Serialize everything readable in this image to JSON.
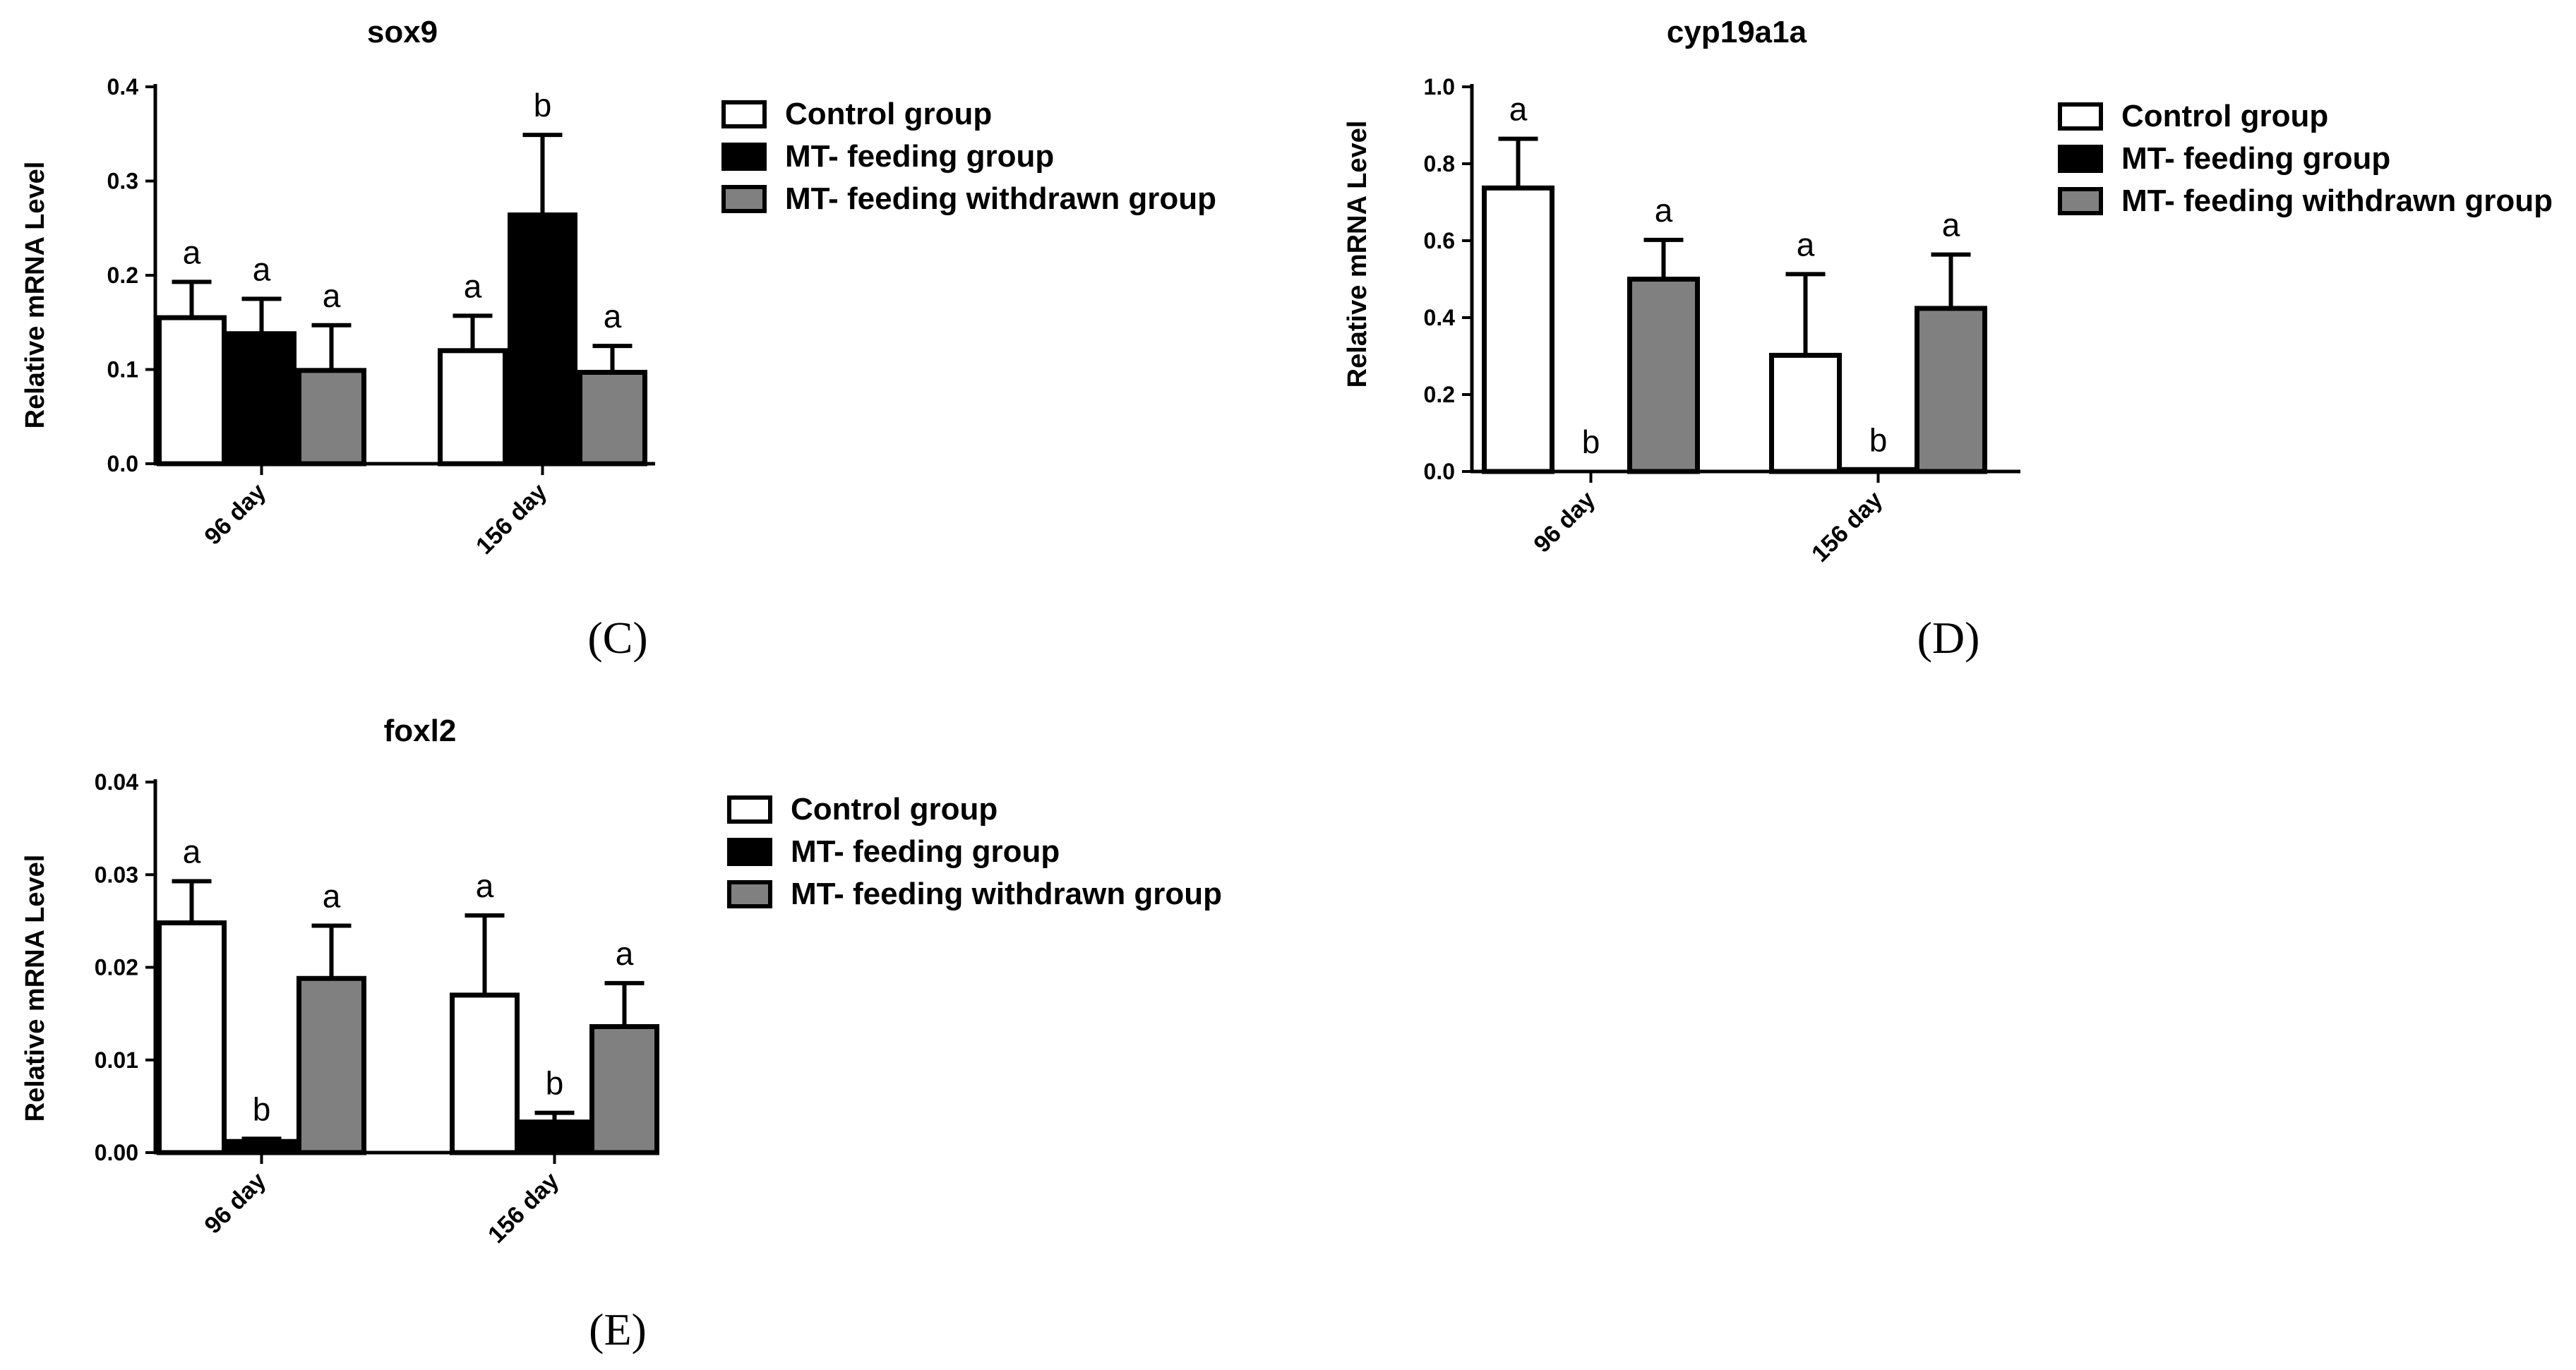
{
  "chart_data": [
    {
      "type": "bar",
      "panel_label": "(C)",
      "title": "sox9",
      "ylabel": "Relative mRNA Level",
      "xlabel": "",
      "ylim": [
        0,
        0.4
      ],
      "yticks": [
        "0.0",
        "0.1",
        "0.2",
        "0.3",
        "0.4"
      ],
      "categories": [
        "96 day",
        "156 day"
      ],
      "series": [
        {
          "name": "Control group",
          "values": [
            0.155,
            0.12
          ],
          "errors": [
            0.038,
            0.037
          ],
          "letters": [
            "a",
            "a"
          ]
        },
        {
          "name": "MT- feeding group",
          "values": [
            0.138,
            0.264
          ],
          "errors": [
            0.037,
            0.085
          ],
          "letters": [
            "a",
            "b"
          ]
        },
        {
          "name": "MT- feeding withdrawn group",
          "values": [
            0.099,
            0.097
          ],
          "errors": [
            0.048,
            0.028
          ],
          "letters": [
            "a",
            "a"
          ]
        }
      ]
    },
    {
      "type": "bar",
      "panel_label": "(D)",
      "title": "cyp19a1a",
      "ylabel": "Relative mRNA Level",
      "xlabel": "",
      "ylim": [
        0,
        1.0
      ],
      "yticks": [
        "0.0",
        "0.2",
        "0.4",
        "0.6",
        "0.8",
        "1.0"
      ],
      "categories": [
        "96 day",
        "156 day"
      ],
      "series": [
        {
          "name": "Control group",
          "values": [
            0.737,
            0.302
          ],
          "errors": [
            0.128,
            0.211
          ],
          "letters": [
            "a",
            "a"
          ]
        },
        {
          "name": "MT- feeding group",
          "values": [
            0.0,
            0.005
          ],
          "errors": [
            0.0,
            0.0
          ],
          "letters": [
            "b",
            "b"
          ]
        },
        {
          "name": "MT- feeding withdrawn group",
          "values": [
            0.5,
            0.424
          ],
          "errors": [
            0.102,
            0.14
          ],
          "letters": [
            "a",
            "a"
          ]
        }
      ]
    },
    {
      "type": "bar",
      "panel_label": "(E)",
      "title": "foxl2",
      "ylabel": "Relative mRNA Level",
      "xlabel": "",
      "ylim": [
        0,
        0.04
      ],
      "yticks": [
        "0.00",
        "0.01",
        "0.02",
        "0.03",
        "0.04"
      ],
      "categories": [
        "96 day",
        "156 day"
      ],
      "series": [
        {
          "name": "Control group",
          "values": [
            0.0248,
            0.017
          ],
          "errors": [
            0.0045,
            0.0086
          ],
          "letters": [
            "a",
            "a"
          ]
        },
        {
          "name": "MT- feeding group",
          "values": [
            0.0012,
            0.0033
          ],
          "errors": [
            0.0003,
            0.001
          ],
          "letters": [
            "b",
            "b"
          ]
        },
        {
          "name": "MT- feeding withdrawn group",
          "values": [
            0.0188,
            0.0136
          ],
          "errors": [
            0.0057,
            0.0047
          ],
          "letters": [
            "a",
            "a"
          ]
        }
      ]
    }
  ],
  "colors": {
    "series_fills": [
      "#ffffff",
      "#000000",
      "#808080"
    ],
    "stroke": "#000000"
  }
}
